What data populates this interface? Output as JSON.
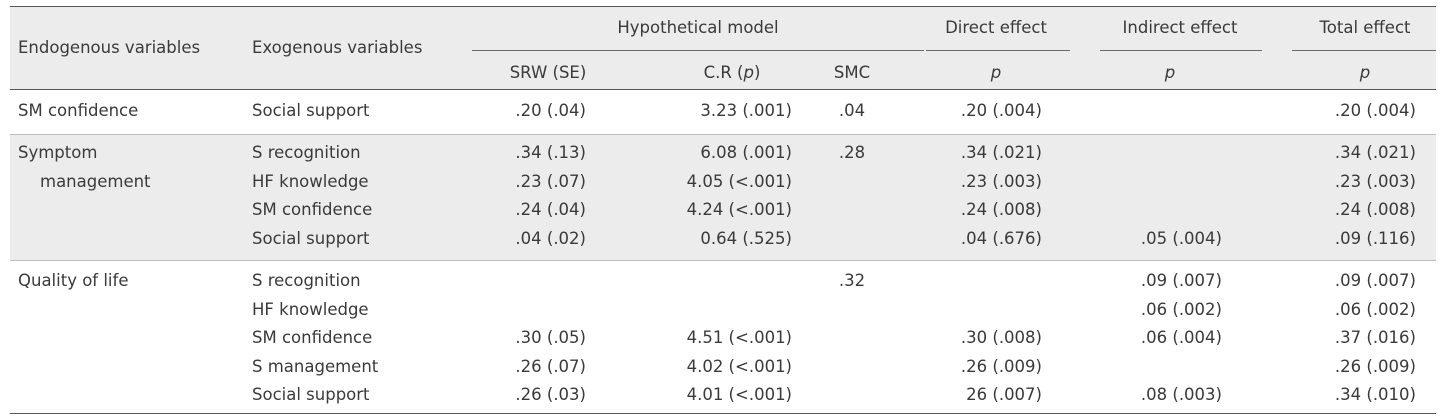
{
  "table": {
    "headers": {
      "endogenous": "Endogenous variables",
      "exogenous": "Exogenous variables",
      "hypothetical_model": "Hypothetical model",
      "direct_effect": "Direct effect",
      "indirect_effect": "Indirect effect",
      "total_effect": "Total effect",
      "srw_se": "SRW (SE)",
      "cr_prefix": "C.R (",
      "cr_p": "p",
      "cr_suffix": ")",
      "smc": "SMC",
      "p_direct": "p",
      "p_indirect": "p",
      "p_total": "p"
    },
    "groups": [
      {
        "endogenous": [
          "SM confidence"
        ],
        "rows": [
          {
            "exo": "Social support",
            "srw": ".20 (.04)",
            "cr": "3.23 (.001)",
            "smc": ".04",
            "direct": ".20 (.004)",
            "indirect": "",
            "total": ".20 (.004)"
          }
        ]
      },
      {
        "endogenous": [
          "Symptom",
          "management"
        ],
        "rows": [
          {
            "exo": "S recognition",
            "srw": ".34 (.13)",
            "cr": "6.08 (.001)",
            "smc": ".28",
            "direct": ".34 (.021)",
            "indirect": "",
            "total": ".34 (.021)"
          },
          {
            "exo": "HF knowledge",
            "srw": ".23 (.07)",
            "cr": "4.05 (<.001)",
            "smc": "",
            "direct": ".23 (.003)",
            "indirect": "",
            "total": ".23 (.003)"
          },
          {
            "exo": "SM confidence",
            "srw": ".24 (.04)",
            "cr": "4.24 (<.001)",
            "smc": "",
            "direct": ".24 (.008)",
            "indirect": "",
            "total": ".24 (.008)"
          },
          {
            "exo": "Social support",
            "srw": ".04 (.02)",
            "cr": "0.64 (.525)",
            "smc": "",
            "direct": ".04 (.676)",
            "indirect": ".05 (.004)",
            "total": ".09 (.116)"
          }
        ]
      },
      {
        "endogenous": [
          "Quality of life"
        ],
        "rows": [
          {
            "exo": "S recognition",
            "srw": "",
            "cr": "",
            "smc": ".32",
            "direct": "",
            "indirect": ".09 (.007)",
            "total": ".09 (.007)"
          },
          {
            "exo": "HF knowledge",
            "srw": "",
            "cr": "",
            "smc": "",
            "direct": "",
            "indirect": ".06 (.002)",
            "total": ".06 (.002)"
          },
          {
            "exo": "SM confidence",
            "srw": ".30 (.05)",
            "cr": "4.51 (<.001)",
            "smc": "",
            "direct": ".30 (.008)",
            "indirect": ".06 (.004)",
            "total": ".37 (.016)"
          },
          {
            "exo": "S management",
            "srw": ".26 (.07)",
            "cr": "4.02 (<.001)",
            "smc": "",
            "direct": ".26 (.009)",
            "indirect": "",
            "total": ".26 (.009)"
          },
          {
            "exo": "Social support",
            "srw": ".26 (.03)",
            "cr": "4.01 (<.001)",
            "smc": "",
            "direct": "26 (.007)",
            "indirect": ".08 (.003)",
            "total": ".34 (.010)"
          }
        ]
      }
    ]
  }
}
